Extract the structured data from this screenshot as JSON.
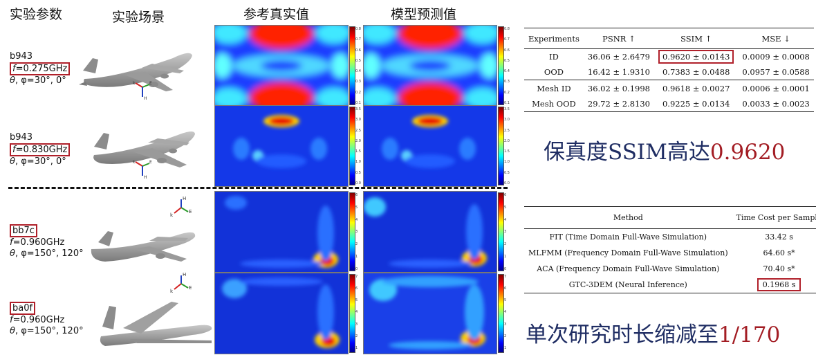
{
  "headers": {
    "params": "实验参数",
    "scene": "实验场景",
    "ground_truth": "参考真实值",
    "prediction": "模型预测值"
  },
  "samples": [
    {
      "model": "b943",
      "freq": "=0.275GHz",
      "angles": ", φ=30°, 0°"
    },
    {
      "model": "b943",
      "freq": "=0.830GHz",
      "angles": ", φ=30°, 0°"
    },
    {
      "model": "bb7c",
      "freq": "=0.960GHz",
      "angles": ", φ=150°, 120°"
    },
    {
      "model": "ba0f",
      "freq": "=0.960GHz",
      "angles": ", φ=150°, 120°"
    }
  ],
  "symbols": {
    "f": "f",
    "theta": "θ"
  },
  "axis_labels": {
    "k": "k",
    "e": "E",
    "h": "H"
  },
  "colorbar_ticks": [
    [
      "0.8",
      "0.7",
      "0.6",
      "0.5",
      "0.4",
      "0.3",
      "0.2",
      "0.1"
    ],
    [
      "3.5",
      "3.0",
      "2.5",
      "2.0",
      "1.5",
      "1.0",
      "0.5",
      "0.0"
    ],
    [
      "6",
      "5",
      "4",
      "3",
      "2",
      "1",
      "0"
    ],
    [
      "7",
      "6",
      "5",
      "4",
      "3",
      "2",
      "1"
    ]
  ],
  "table1": {
    "headers": [
      "Experiments",
      "PSNR ↑",
      "SSIM ↑",
      "MSE ↓"
    ],
    "rows": [
      [
        "ID",
        "36.06 ± 2.6479",
        "0.9620 ± 0.0143",
        "0.0009 ± 0.0008"
      ],
      [
        "OOD",
        "16.42 ± 1.9310",
        "0.7383 ± 0.0488",
        "0.0957 ± 0.0588"
      ],
      [
        "Mesh ID",
        "36.02 ± 0.1998",
        "0.9618 ± 0.0027",
        "0.0006 ± 0.0001"
      ],
      [
        "Mesh OOD",
        "29.72 ± 2.8130",
        "0.9225 ± 0.0134",
        "0.0033 ± 0.0023"
      ]
    ]
  },
  "caption1": {
    "text": "保真度SSIM高达",
    "highlight": "0.9620"
  },
  "table2": {
    "headers": [
      "Method",
      "Time Cost per Sample"
    ],
    "rows": [
      [
        "FIT (Time Domain Full-Wave Simulation)",
        "33.42 s"
      ],
      [
        "MLFMM (Frequency Domain Full-Wave Simulation)",
        "64.60 s*"
      ],
      [
        "ACA (Frequency Domain Full-Wave Simulation)",
        "70.40 s*"
      ],
      [
        "GTC-3DEM (Neural Inference)",
        "0.1968 s"
      ]
    ]
  },
  "caption2": {
    "text": "单次研究时长缩减至",
    "highlight": "1/170"
  },
  "colors": {
    "highlight_box": "#b0202a",
    "caption_text": "#1f2d63",
    "caption_highlight": "#a31d24"
  }
}
